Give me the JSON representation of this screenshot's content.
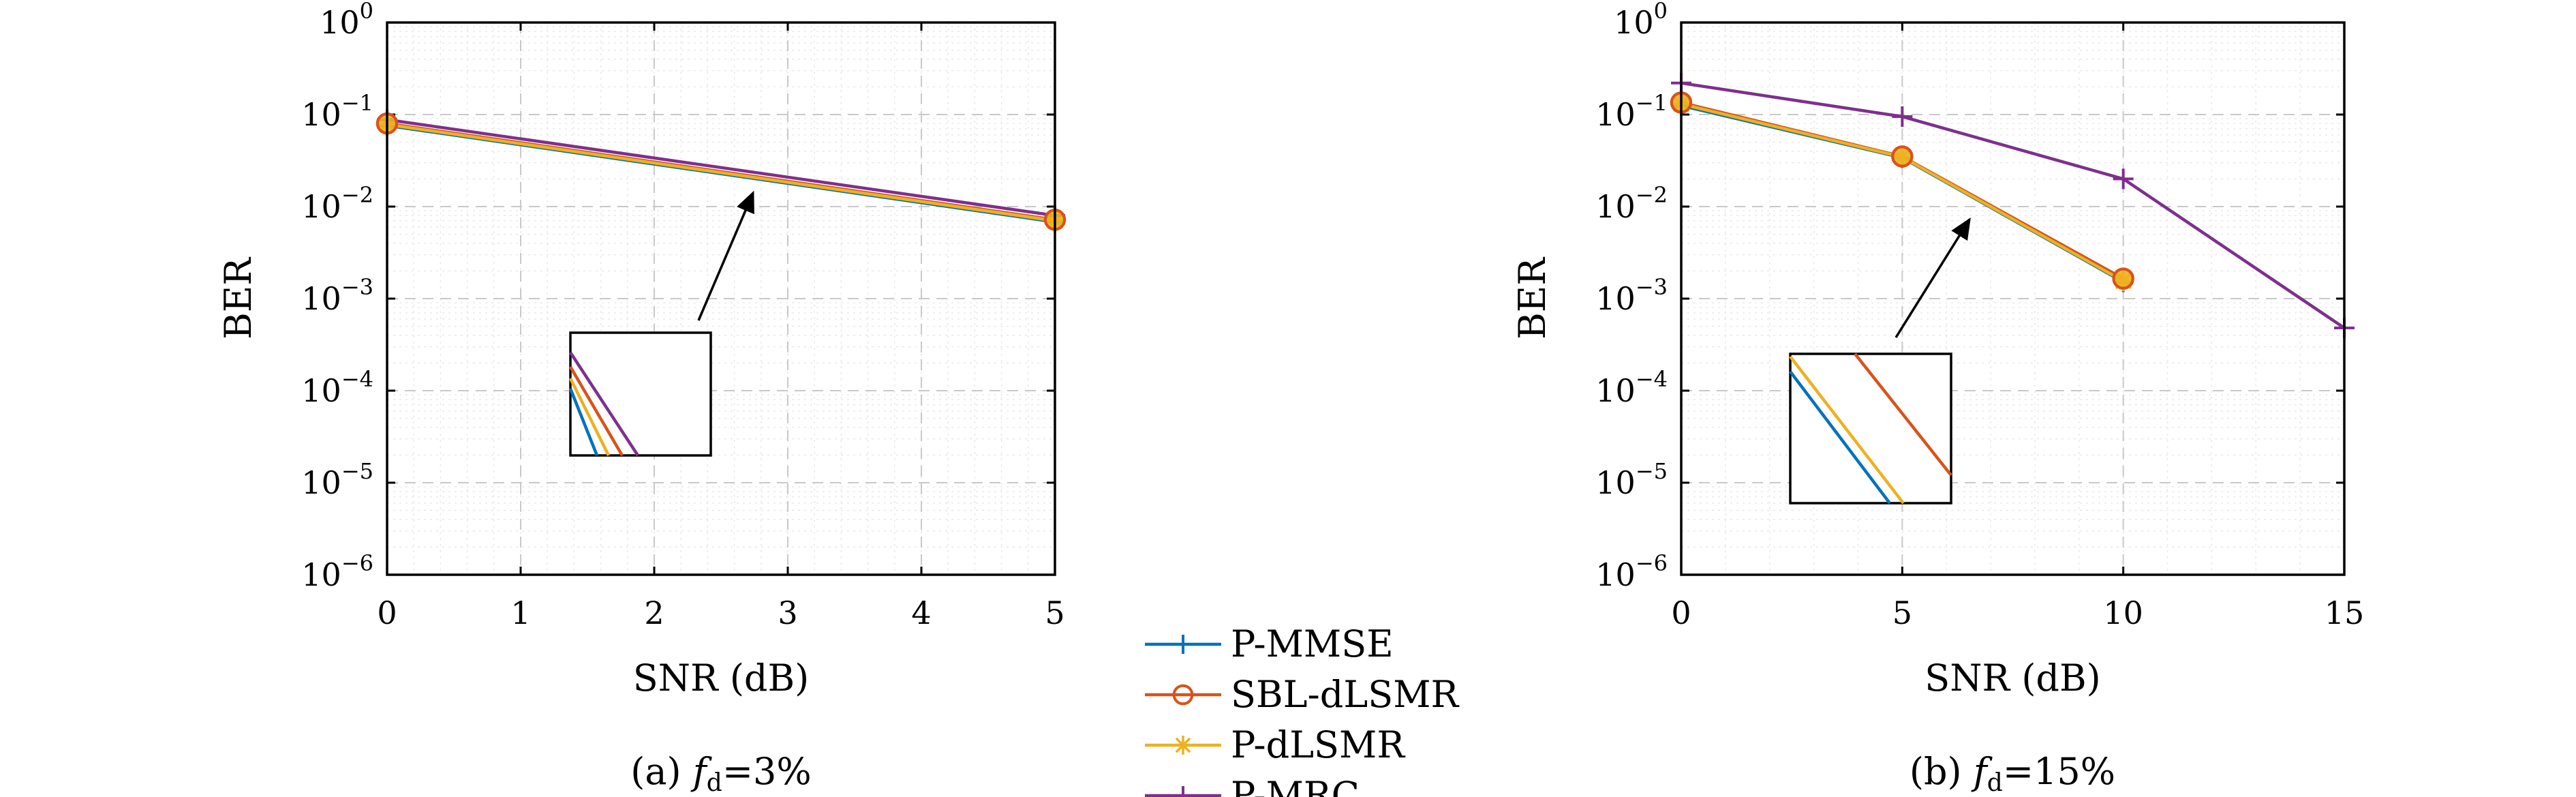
{
  "colors": {
    "P-MMSE": "#0072BD",
    "SBL-dLSMR": "#D95319",
    "P-dLSMR": "#EDB120",
    "P-MRC": "#7E2F8E"
  },
  "legend": {
    "placement": "bottom-center",
    "entries": [
      {
        "name": "P-MMSE",
        "marker": "plus"
      },
      {
        "name": "SBL-dLSMR",
        "marker": "circle"
      },
      {
        "name": "P-dLSMR",
        "marker": "asterisk"
      },
      {
        "name": "P-MRC",
        "marker": "plus"
      }
    ]
  },
  "chart_data": [
    {
      "type": "line",
      "caption": {
        "prefix": "(a) ",
        "var": "f",
        "sub": "d",
        "suffix": "=3%"
      },
      "xlabel": "SNR (dB)",
      "ylabel": "BER",
      "yscale": "log",
      "xlim": [
        0,
        5
      ],
      "ylim": [
        1e-06,
        1
      ],
      "xticks": [
        0,
        1,
        2,
        3,
        4,
        5
      ],
      "yticks_exponents": [
        0,
        -1,
        -2,
        -3,
        -4,
        -5,
        -6
      ],
      "ytick_base": "10",
      "grid": true,
      "series": [
        {
          "name": "P-MMSE",
          "x": [
            0,
            5
          ],
          "y": [
            0.076,
            0.0068
          ]
        },
        {
          "name": "SBL-dLSMR",
          "x": [
            0,
            5
          ],
          "y": [
            0.08,
            0.0072
          ]
        },
        {
          "name": "P-dLSMR",
          "x": [
            0,
            5
          ],
          "y": [
            0.078,
            0.007
          ]
        },
        {
          "name": "P-MRC",
          "x": [
            0,
            5
          ],
          "y": [
            0.088,
            0.008
          ]
        }
      ],
      "inset": {
        "type": "zoom",
        "arrow": true
      }
    },
    {
      "type": "line",
      "caption": {
        "prefix": "(b) ",
        "var": "f",
        "sub": "d",
        "suffix": "=15%"
      },
      "xlabel": "SNR (dB)",
      "ylabel": "BER",
      "yscale": "log",
      "xlim": [
        0,
        15
      ],
      "ylim": [
        1e-06,
        1
      ],
      "xticks": [
        0,
        5,
        10,
        15
      ],
      "yticks_exponents": [
        0,
        -1,
        -2,
        -3,
        -4,
        -5,
        -6
      ],
      "ytick_base": "10",
      "grid": true,
      "series": [
        {
          "name": "P-MMSE",
          "x": [
            0,
            5,
            10
          ],
          "y": [
            0.125,
            0.034,
            0.00152
          ]
        },
        {
          "name": "SBL-dLSMR",
          "x": [
            0,
            5,
            10
          ],
          "y": [
            0.135,
            0.035,
            0.00165
          ]
        },
        {
          "name": "P-dLSMR",
          "x": [
            0,
            5,
            10
          ],
          "y": [
            0.13,
            0.0345,
            0.00155
          ]
        },
        {
          "name": "P-MRC",
          "x": [
            0,
            5,
            10,
            15
          ],
          "y": [
            0.22,
            0.095,
            0.02,
            0.00048
          ]
        }
      ],
      "inset": {
        "type": "zoom",
        "arrow": true
      }
    }
  ]
}
